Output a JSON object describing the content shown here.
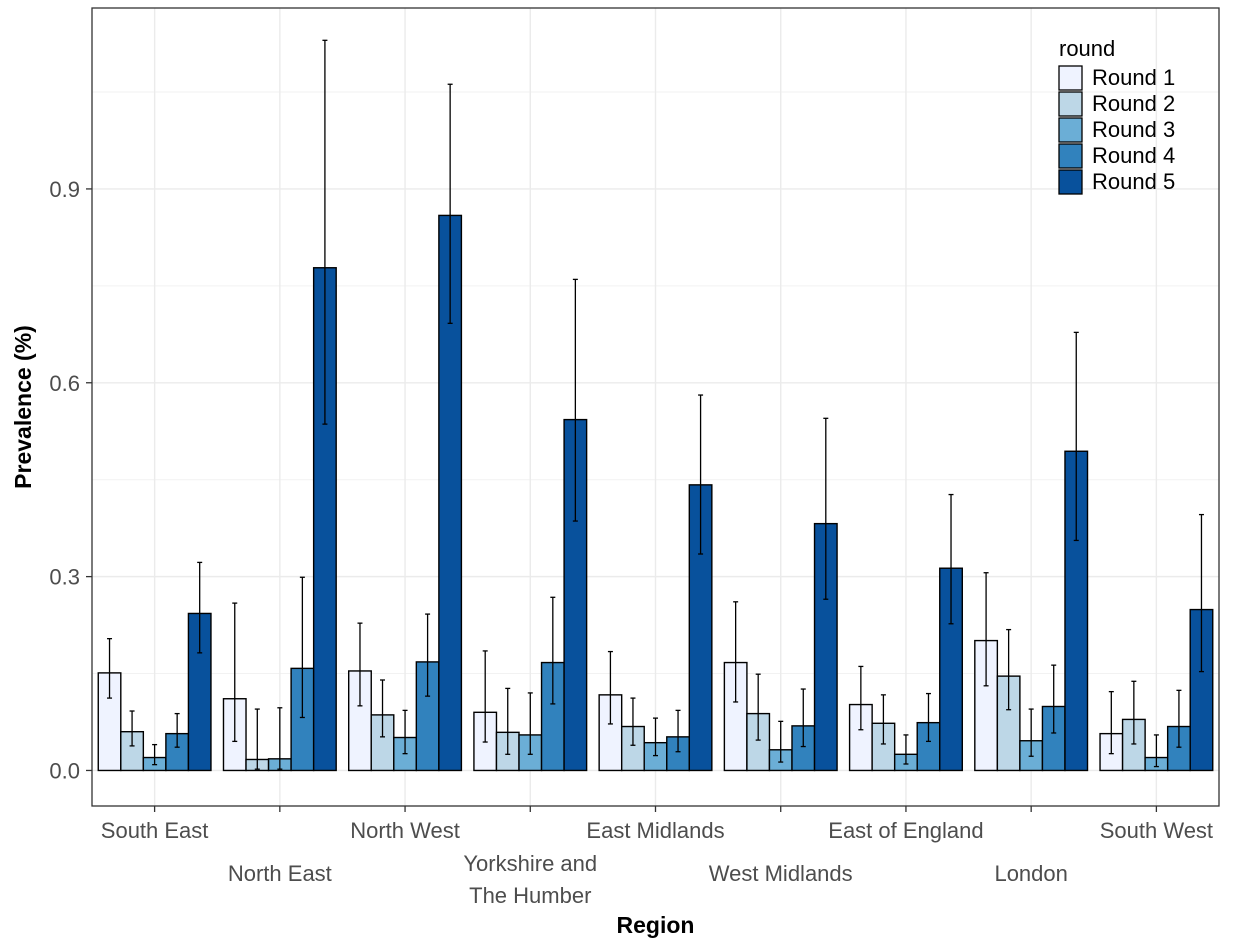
{
  "chart_data": {
    "type": "bar",
    "xlabel": "Region",
    "ylabel": "Prevalence (%)",
    "ylim": [
      -0.055,
      1.18
    ],
    "yticks": [
      "0.0",
      "0.3",
      "0.6",
      "0.9"
    ],
    "grid": true,
    "legend": {
      "title": "round",
      "placement": "top-right"
    },
    "categories": [
      "South East",
      "North East",
      "North West",
      "Yorkshire and The Humber",
      "East Midlands",
      "West Midlands",
      "East of England",
      "London",
      "South West"
    ],
    "category_label_lines": [
      [
        "South East"
      ],
      [
        "North East"
      ],
      [
        "North West"
      ],
      [
        "Yorkshire and",
        "The Humber"
      ],
      [
        "East Midlands"
      ],
      [
        "West Midlands"
      ],
      [
        "East of England"
      ],
      [
        "London"
      ],
      [
        "South West"
      ]
    ],
    "series": [
      {
        "name": "Round 1",
        "color": "#eff3ff",
        "values": [
          0.151,
          0.111,
          0.154,
          0.09,
          0.117,
          0.167,
          0.102,
          0.201,
          0.057
        ],
        "lower": [
          0.112,
          0.045,
          0.1,
          0.044,
          0.072,
          0.106,
          0.063,
          0.131,
          0.026
        ],
        "upper": [
          0.204,
          0.259,
          0.228,
          0.185,
          0.184,
          0.261,
          0.161,
          0.306,
          0.122
        ]
      },
      {
        "name": "Round 2",
        "color": "#bdd7e7",
        "values": [
          0.06,
          0.017,
          0.086,
          0.059,
          0.068,
          0.088,
          0.073,
          0.146,
          0.079
        ],
        "lower": [
          0.038,
          0.002,
          0.052,
          0.025,
          0.039,
          0.047,
          0.041,
          0.094,
          0.041
        ],
        "upper": [
          0.092,
          0.095,
          0.14,
          0.127,
          0.112,
          0.149,
          0.117,
          0.218,
          0.138
        ]
      },
      {
        "name": "Round 3",
        "color": "#6baed6",
        "values": [
          0.02,
          0.018,
          0.051,
          0.055,
          0.043,
          0.032,
          0.025,
          0.046,
          0.02
        ],
        "lower": [
          0.009,
          0.002,
          0.026,
          0.025,
          0.023,
          0.013,
          0.01,
          0.022,
          0.006
        ],
        "upper": [
          0.04,
          0.097,
          0.093,
          0.12,
          0.081,
          0.076,
          0.055,
          0.095,
          0.055
        ]
      },
      {
        "name": "Round 4",
        "color": "#3182bd",
        "values": [
          0.057,
          0.158,
          0.168,
          0.167,
          0.052,
          0.069,
          0.074,
          0.099,
          0.068
        ],
        "lower": [
          0.036,
          0.082,
          0.115,
          0.103,
          0.029,
          0.037,
          0.045,
          0.058,
          0.036
        ],
        "upper": [
          0.088,
          0.299,
          0.242,
          0.268,
          0.093,
          0.126,
          0.119,
          0.163,
          0.124
        ]
      },
      {
        "name": "Round 5",
        "color": "#08519c",
        "values": [
          0.243,
          0.778,
          0.859,
          0.543,
          0.442,
          0.382,
          0.313,
          0.494,
          0.249
        ],
        "lower": [
          0.182,
          0.536,
          0.692,
          0.386,
          0.335,
          0.265,
          0.227,
          0.356,
          0.153
        ],
        "upper": [
          0.322,
          1.13,
          1.062,
          0.76,
          0.581,
          0.545,
          0.427,
          0.678,
          0.396
        ]
      }
    ]
  }
}
